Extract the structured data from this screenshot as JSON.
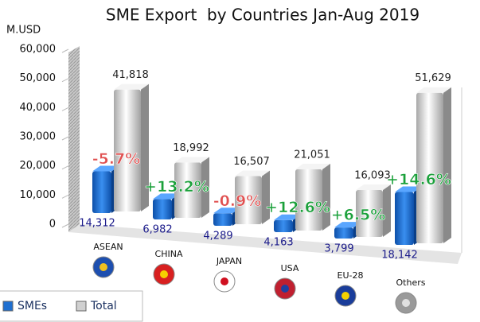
{
  "chart_data": {
    "type": "bar3d",
    "title": "SME Export  by Countries Jan-Aug 2019",
    "y_label": "M.USD",
    "categories": [
      "ASEAN",
      "CHINA",
      "JAPAN",
      "USA",
      "EU-28",
      "Others"
    ],
    "series": [
      {
        "name": "SMEs",
        "color": "#1f6fd0",
        "values": [
          14312,
          6982,
          4289,
          4163,
          3799,
          18142
        ],
        "value_labels": [
          "14,312",
          "6,982",
          "4,289",
          "4,163",
          "3,799",
          "18,142"
        ]
      },
      {
        "name": "Total",
        "color": "#d8d8d8",
        "values": [
          41818,
          18992,
          16507,
          21051,
          16093,
          51629
        ],
        "value_labels": [
          "41,818",
          "18,992",
          "16,507",
          "21,051",
          "16,093",
          "51,629"
        ]
      }
    ],
    "annotations": [
      {
        "text": "-5.7%",
        "color": "#e05050"
      },
      {
        "text": "+13.2%",
        "color": "#1aa03a"
      },
      {
        "text": "-0.9%",
        "color": "#e05050"
      },
      {
        "text": "+12.6%",
        "color": "#1aa03a"
      },
      {
        "text": "+6.5%",
        "color": "#1aa03a"
      },
      {
        "text": "+14.6%",
        "color": "#1aa03a"
      }
    ],
    "ylim": [
      0,
      60000
    ],
    "yticks": [
      0,
      {
        "value": 10000,
        "label": "10,000"
      },
      {
        "value": 20000,
        "label": "20,000"
      },
      {
        "value": 30000,
        "label": "30,000"
      },
      {
        "value": 40000,
        "label": "40,000"
      },
      {
        "value": 50000,
        "label": "50,000"
      },
      {
        "value": 60000,
        "label": "60,000"
      }
    ],
    "legend": "bottom-left"
  }
}
